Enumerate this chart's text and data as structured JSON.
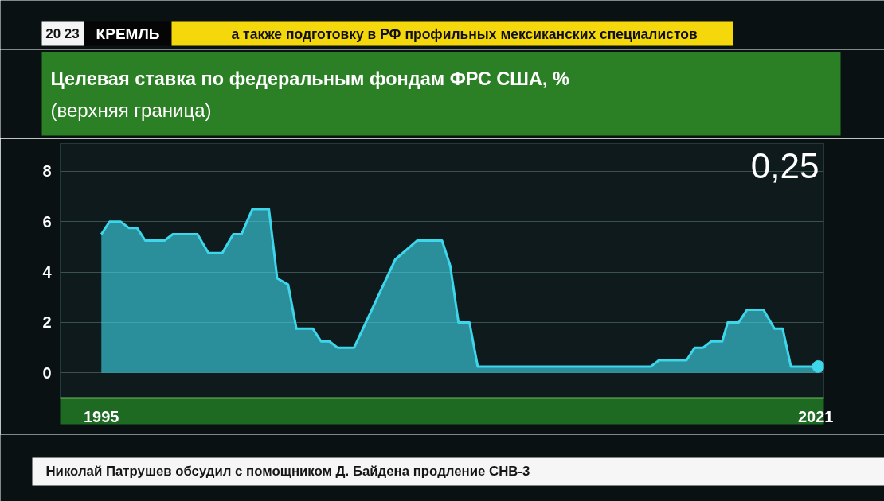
{
  "chart_data": {
    "type": "area",
    "title": "Целевая ставка по федеральным фондам ФРС США, %",
    "subtitle": "(верхняя граница)",
    "xlim": [
      1993.5,
      2021.3
    ],
    "xticks": [
      1995,
      2021
    ],
    "ylim": [
      -1,
      9.1
    ],
    "yticks": [
      0,
      2,
      4,
      6,
      8
    ],
    "grid": "y",
    "series": [
      {
        "color": "#3dd6ea",
        "x": [
          1995.0,
          1995.3,
          1995.7,
          1996.0,
          1996.3,
          1996.6,
          1997.3,
          1997.6,
          1998.5,
          1998.9,
          1999.4,
          1999.8,
          2000.1,
          2000.5,
          2001.1,
          2001.4,
          2001.8,
          2002.1,
          2002.7,
          2003.0,
          2003.3,
          2003.6,
          2004.2,
          2005.7,
          2006.5,
          2007.4,
          2007.7,
          2008.0,
          2008.4,
          2008.7,
          2015.0,
          2015.3,
          2016.3,
          2016.6,
          2016.9,
          2017.2,
          2017.6,
          2017.8,
          2018.2,
          2018.5,
          2019.1,
          2019.5,
          2019.8,
          2020.1,
          2021.1
        ],
        "values": [
          5.5,
          6,
          6,
          5.75,
          5.75,
          5.25,
          5.25,
          5.5,
          5.5,
          4.75,
          4.75,
          5.5,
          5.5,
          6.5,
          6.5,
          3.75,
          3.5,
          1.75,
          1.75,
          1.25,
          1.25,
          1,
          1,
          4.5,
          5.25,
          5.25,
          4.25,
          2,
          2,
          0.25,
          0.25,
          0.5,
          0.5,
          1,
          1,
          1.25,
          1.25,
          2,
          2,
          2.5,
          2.5,
          1.75,
          1.75,
          0.25,
          0.25
        ]
      },
      {
        "type": "scatter",
        "marker": "circle",
        "color": "#3dd6ea",
        "x": [
          2021.1
        ],
        "values": [
          0.25
        ]
      }
    ],
    "annotations": [
      "0,25",
      "20 23",
      "КРЕМЛЬ",
      "а также подготовку в РФ профильных мексиканских специалистов",
      "Николай Патрушев обсудил с помощником Д. Байдена продление СНВ-3"
    ]
  }
}
